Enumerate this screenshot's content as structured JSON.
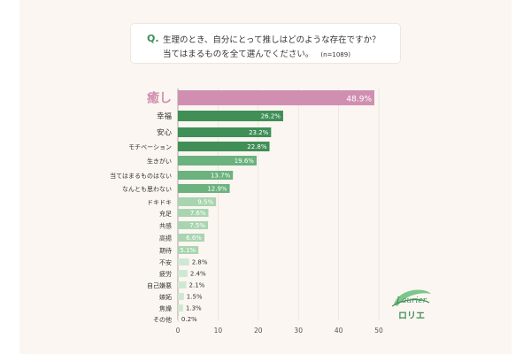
{
  "question": {
    "mark": "Q.",
    "line1": "生理のとき、自分にとって推しはどのような存在ですか？",
    "line2": "当てはまるものを全て選んでください。",
    "sample": "(n=1089)"
  },
  "logo": {
    "name": "Laurier",
    "kana": "ロリエ"
  },
  "colors": {
    "background": "#fbf6f1",
    "highlight": "#d08fb0",
    "dark_green": "#3f8f57",
    "mid_green": "#6bb27e",
    "light_green": "#a8d5b0",
    "pale_green": "#cfe8d3"
  },
  "chart_data": {
    "type": "bar",
    "orientation": "horizontal",
    "categories": [
      "癒し",
      "幸福",
      "安心",
      "モチベーション",
      "生きがい",
      "当てはまるものはない",
      "なんとも思わない",
      "ドキドキ",
      "充足",
      "共感",
      "高揚",
      "期待",
      "不安",
      "疲労",
      "自己嫌悪",
      "嫉妬",
      "焦燥",
      "その他"
    ],
    "values": [
      48.9,
      26.2,
      23.2,
      22.8,
      19.6,
      13.7,
      12.9,
      9.5,
      7.6,
      7.5,
      6.6,
      5.1,
      2.8,
      2.4,
      2.1,
      1.5,
      1.3,
      0.2
    ],
    "value_labels": [
      "48.9%",
      "26.2%",
      "23.2%",
      "22.8%",
      "19.6%",
      "13.7%",
      "12.9%",
      "9.5%",
      "7.6%",
      "7.5%",
      "6.6%",
      "5.1%",
      "2.8%",
      "2.4%",
      "2.1%",
      "1.5%",
      "1.3%",
      "0.2%"
    ],
    "xlim": [
      0,
      50
    ],
    "x_ticks": [
      "0",
      "10",
      "20",
      "30",
      "40",
      "50"
    ],
    "grid": true,
    "unit": "%"
  }
}
